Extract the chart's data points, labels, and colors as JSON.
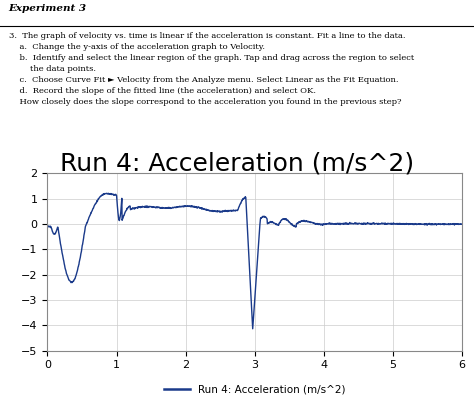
{
  "title": "Run 4: Acceleration (m/s^2)",
  "legend_label": "Run 4: Acceleration (m/s^2)",
  "xlim": [
    0,
    6
  ],
  "ylim": [
    -5,
    2
  ],
  "xticks": [
    0,
    1,
    2,
    3,
    4,
    5,
    6
  ],
  "yticks": [
    -5,
    -4,
    -3,
    -2,
    -1,
    0,
    1,
    2
  ],
  "line_color": "#1a3a8a",
  "chart_bg": "#ffffff",
  "fig_bg": "#ffffff",
  "text_bg": "#c8c0b4",
  "title_fontsize": 18,
  "header": "Experiment 3",
  "text_lines": [
    "3.  The graph of velocity vs. time is linear if the acceleration is constant. Fit a line to the data.",
    "    a.  Change the y-axis of the acceleration graph to Velocity.",
    "    b.  Identify and select the linear region of the graph. Tap and drag across the region to select",
    "        the data points.",
    "    c.  Choose Curve Fit ► Velocity from the Analyze menu. Select Linear as the Fit Equation.",
    "    d.  Record the slope of the fitted line (the acceleration) and select OK.",
    "    How closely does the slope correspond to the acceleration you found in the previous step?"
  ]
}
